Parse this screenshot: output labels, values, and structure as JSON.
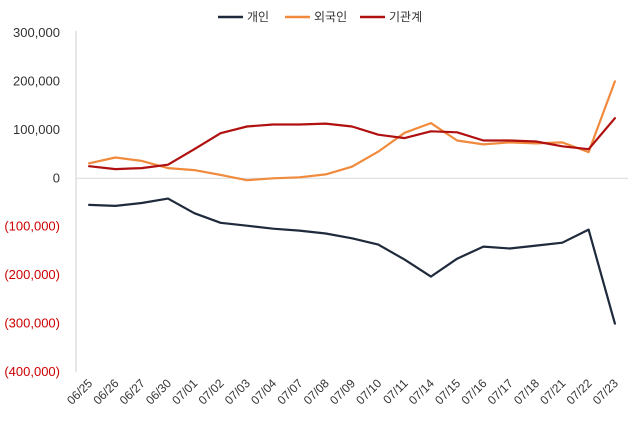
{
  "chart_data": {
    "type": "line",
    "title": "",
    "xlabel": "",
    "ylabel": "",
    "ylim": [
      -400000,
      300000
    ],
    "yticks": [
      300000,
      200000,
      100000,
      0,
      -100000,
      -200000,
      -300000,
      -400000
    ],
    "ytick_labels": [
      "300,000",
      "200,000",
      "100,000",
      "0",
      "(100,000)",
      "(200,000)",
      "(300,000)",
      "(400,000)"
    ],
    "negative_tick_color": "#cc0000",
    "grid": false,
    "legend_position": "top-center",
    "categories": [
      "06/25",
      "06/26",
      "06/27",
      "06/30",
      "07/01",
      "07/02",
      "07/03",
      "07/04",
      "07/07",
      "07/08",
      "07/09",
      "07/10",
      "07/11",
      "07/14",
      "07/15",
      "07/16",
      "07/17",
      "07/18",
      "07/21",
      "07/22",
      "07/23"
    ],
    "series": [
      {
        "name": "개인",
        "color": "#1f2a3c",
        "values": [
          -55000,
          -57000,
          -51000,
          -42000,
          -72000,
          -92000,
          -98000,
          -104000,
          -108000,
          -114000,
          -124000,
          -137000,
          -168000,
          -203000,
          -166000,
          -141000,
          -145000,
          -139000,
          -133000,
          -106000,
          -300000
        ]
      },
      {
        "name": "외국인",
        "color": "#f08a3c",
        "values": [
          31000,
          43000,
          36000,
          21000,
          17000,
          7000,
          -4000,
          0,
          2000,
          8000,
          24000,
          55000,
          94000,
          114000,
          78000,
          70000,
          74000,
          72000,
          74000,
          54000,
          200000
        ]
      },
      {
        "name": "기관계",
        "color": "#b01010",
        "values": [
          25000,
          19000,
          21000,
          28000,
          60000,
          93000,
          107000,
          111000,
          111000,
          113000,
          107000,
          90000,
          83000,
          97000,
          95000,
          78000,
          78000,
          76000,
          66000,
          60000,
          124000
        ]
      }
    ]
  }
}
